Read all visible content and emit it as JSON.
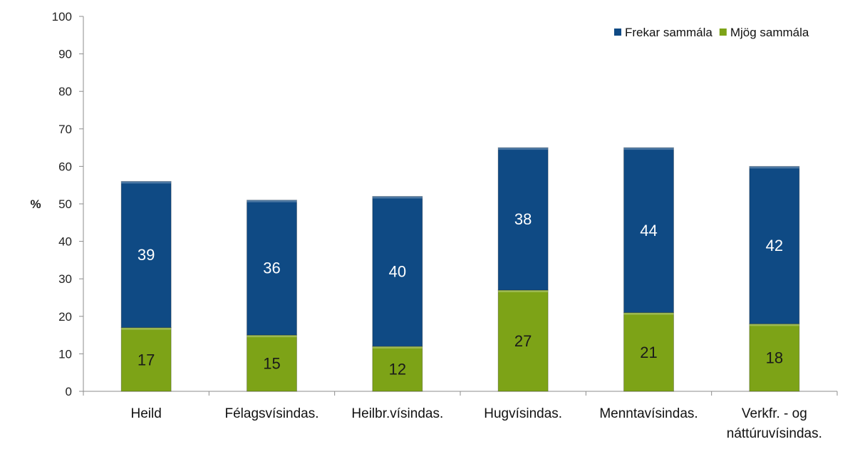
{
  "chart_data": {
    "type": "bar",
    "stacked": true,
    "categories": [
      "Heild",
      "Félagsvísindas.",
      "Heilbr.vísindas.",
      "Hugvísindas.",
      "Menntavísindas.",
      "Verkfr. - og\nnáttúruvísindas."
    ],
    "series": [
      {
        "name": "Mjög sammála",
        "values": [
          17,
          15,
          12,
          27,
          21,
          18
        ],
        "color": "#7da317",
        "label_color": "#1a1a1a"
      },
      {
        "name": "Frekar sammála",
        "values": [
          39,
          36,
          40,
          38,
          44,
          42
        ],
        "color": "#0f4a84",
        "label_color": "#ffffff"
      }
    ],
    "legend_order": [
      "Frekar sammála",
      "Mjög sammála"
    ],
    "title": "",
    "xlabel": "",
    "ylabel": "%",
    "ylim": [
      0,
      100
    ],
    "yticks": [
      0,
      10,
      20,
      30,
      40,
      50,
      60,
      70,
      80,
      90,
      100
    ],
    "grid": false,
    "legend_position": "top-right"
  }
}
